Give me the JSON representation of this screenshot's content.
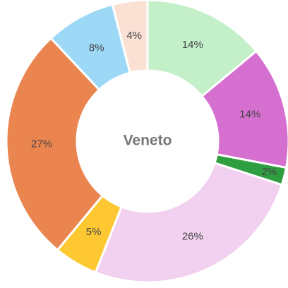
{
  "chart_data": {
    "type": "donut",
    "title": "Veneto",
    "categories": [
      null,
      null,
      null,
      null,
      null,
      null,
      null,
      null
    ],
    "values": [
      14,
      14,
      2,
      26,
      5,
      27,
      8,
      4
    ],
    "value_labels": [
      "14%",
      "14%",
      "2%",
      "26%",
      "5%",
      "27%",
      "8%",
      "4%"
    ],
    "colors": [
      "#c3f0c8",
      "#d56fd0",
      "#2f9e40",
      "#f2d0ef",
      "#fdc832",
      "#eb8550",
      "#9dd9f7",
      "#fbe0d4"
    ]
  }
}
